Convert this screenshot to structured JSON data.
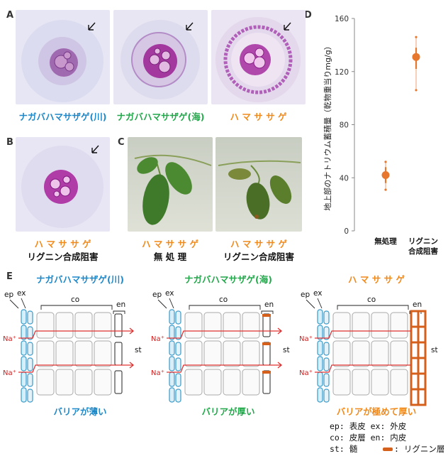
{
  "panel_labels": {
    "a": "A",
    "b": "B",
    "c": "C",
    "d": "D",
    "e": "E"
  },
  "panel_a": {
    "captions": [
      "ナガバハマサザゲ(川)",
      "ナガバハマサザゲ(海)",
      "ハ マ サ サ ゲ"
    ]
  },
  "panel_b": {
    "caption_top": "ハ マ サ サ ゲ",
    "caption_bottom": "リグニン合成阻害"
  },
  "panel_c": {
    "left_top": "ハ マ サ サ ゲ",
    "left_bottom": "無 処 理",
    "right_top": "ハ マ サ サ ゲ",
    "right_bottom": "リグニン合成阻害"
  },
  "chart_data": {
    "type": "scatter",
    "ylabel": "地上部のナトリウム蓄積量（乾物重当りmg/g）",
    "ylim": [
      0,
      160
    ],
    "yticks": [
      "0",
      "40",
      "80",
      "120",
      "160"
    ],
    "categories": [
      "無処理",
      "リグニン\n合成阻害"
    ],
    "cat_labels": [
      [
        "無処理"
      ],
      [
        "リグニン",
        "合成阻害"
      ]
    ],
    "points": [
      {
        "category": "無処理",
        "mean": 42,
        "ci_low": 31,
        "ci_high": 52,
        "q_low": 36,
        "q_high": 48
      },
      {
        "category": "リグニン合成阻害",
        "mean": 131,
        "ci_low": 106,
        "ci_high": 146,
        "q_low": 122,
        "q_high": 138
      }
    ],
    "color": "#e8772e"
  },
  "panel_e": {
    "titles": [
      "ナガバハマサザゲ(川)",
      "ナガバハマサザゲ(海)",
      "ハ マ サ サ ゲ"
    ],
    "footers": [
      "バリアが薄い",
      "バリアが厚い",
      "バリアが極めて厚い"
    ],
    "labels": {
      "ep": "ep",
      "ex": "ex",
      "co": "co",
      "en": "en",
      "st": "st",
      "na": "Na⁺"
    }
  },
  "legend": {
    "line1": "ep: 表皮  ex: 外皮",
    "line2": "co: 皮層  en: 内皮",
    "line3": "st: 髄",
    "line3b": ": リグニン層"
  }
}
